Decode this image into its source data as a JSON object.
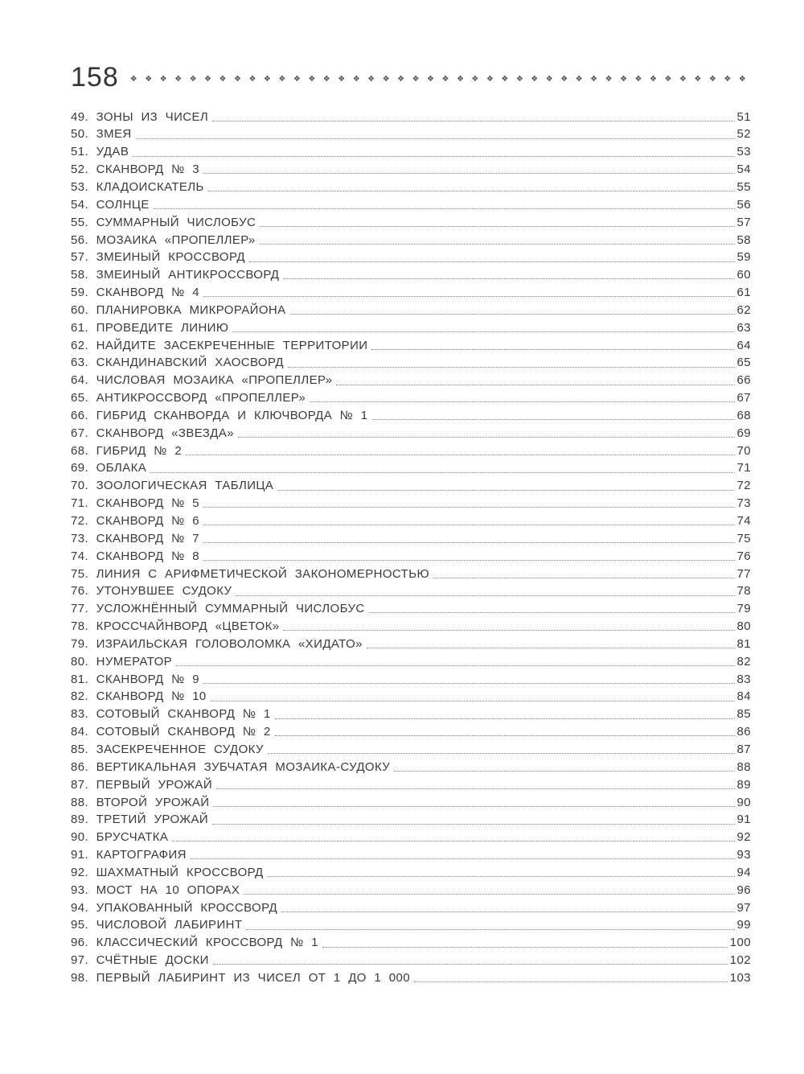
{
  "header": {
    "page_number": "158",
    "ornaments": "❖❖❖❖❖❖❖❖❖❖❖❖❖❖❖❖❖❖❖❖❖❖❖❖❖❖❖❖❖❖❖❖❖❖❖❖❖❖❖❖❖❖❖❖❖❖"
  },
  "toc": {
    "items": [
      {
        "label": "49. ЗОНЫ ИЗ ЧИСЕЛ",
        "page": "51"
      },
      {
        "label": "50. ЗМЕЯ",
        "page": "52"
      },
      {
        "label": "51. УДАВ",
        "page": "53"
      },
      {
        "label": "52. СКАНВОРД № 3",
        "page": "54"
      },
      {
        "label": "53. КЛАДОИСКАТЕЛЬ",
        "page": "55"
      },
      {
        "label": "54. СОЛНЦЕ",
        "page": "56"
      },
      {
        "label": "55. СУММАРНЫЙ ЧИСЛОБУС",
        "page": "57"
      },
      {
        "label": "56. МОЗАИКА «ПРОПЕЛЛЕР»",
        "page": "58"
      },
      {
        "label": "57. ЗМЕИНЫЙ КРОССВОРД",
        "page": "59"
      },
      {
        "label": "58. ЗМЕИНЫЙ АНТИКРОССВОРД",
        "page": "60"
      },
      {
        "label": "59. СКАНВОРД № 4",
        "page": "61"
      },
      {
        "label": "60. ПЛАНИРОВКА МИКРОРАЙОНА",
        "page": "62"
      },
      {
        "label": "61. ПРОВЕДИТЕ ЛИНИЮ",
        "page": "63"
      },
      {
        "label": "62. НАЙДИТЕ ЗАСЕКРЕЧЕННЫЕ ТЕРРИТОРИИ",
        "page": "64"
      },
      {
        "label": "63. СКАНДИНАВСКИЙ ХАОСВОРД",
        "page": "65"
      },
      {
        "label": "64. ЧИСЛОВАЯ МОЗАИКА «ПРОПЕЛЛЕР»",
        "page": "66"
      },
      {
        "label": "65. АНТИКРОССВОРД «ПРОПЕЛЛЕР»",
        "page": "67"
      },
      {
        "label": "66. ГИБРИД СКАНВОРДА И КЛЮЧВОРДА № 1",
        "page": "68"
      },
      {
        "label": "67. СКАНВОРД «ЗВЕЗДА»",
        "page": "69"
      },
      {
        "label": "68. ГИБРИД № 2",
        "page": "70"
      },
      {
        "label": "69. ОБЛАКА",
        "page": "71"
      },
      {
        "label": "70. ЗООЛОГИЧЕСКАЯ ТАБЛИЦА",
        "page": "72"
      },
      {
        "label": "71. СКАНВОРД № 5",
        "page": "73"
      },
      {
        "label": "72. СКАНВОРД № 6",
        "page": "74"
      },
      {
        "label": "73. СКАНВОРД № 7",
        "page": "75"
      },
      {
        "label": "74. СКАНВОРД № 8",
        "page": "76"
      },
      {
        "label": "75. ЛИНИЯ С АРИФМЕТИЧЕСКОЙ ЗАКОНОМЕРНОСТЬЮ",
        "page": "77"
      },
      {
        "label": "76. УТОНУВШЕЕ СУДОКУ",
        "page": "78"
      },
      {
        "label": "77. УСЛОЖНЁННЫЙ СУММАРНЫЙ ЧИСЛОБУС",
        "page": "79"
      },
      {
        "label": "78. КРОССЧАЙНВОРД «ЦВЕТОК»",
        "page": "80"
      },
      {
        "label": "79. ИЗРАИЛЬСКАЯ ГОЛОВОЛОМКА «ХИДАТО»",
        "page": "81"
      },
      {
        "label": "80. НУМЕРАТОР",
        "page": "82"
      },
      {
        "label": "81. СКАНВОРД № 9",
        "page": "83"
      },
      {
        "label": "82. СКАНВОРД № 10",
        "page": "84"
      },
      {
        "label": "83. СОТОВЫЙ СКАНВОРД № 1",
        "page": "85"
      },
      {
        "label": "84. СОТОВЫЙ СКАНВОРД № 2",
        "page": "86"
      },
      {
        "label": "85. ЗАСЕКРЕЧЕННОЕ СУДОКУ",
        "page": "87"
      },
      {
        "label": "86. ВЕРТИКАЛЬНАЯ ЗУБЧАТАЯ МОЗАИКА-СУДОКУ",
        "page": "88"
      },
      {
        "label": "87. ПЕРВЫЙ УРОЖАЙ",
        "page": "89"
      },
      {
        "label": "88. ВТОРОЙ УРОЖАЙ",
        "page": "90"
      },
      {
        "label": "89. ТРЕТИЙ УРОЖАЙ",
        "page": "91"
      },
      {
        "label": "90. БРУСЧАТКА",
        "page": "92"
      },
      {
        "label": "91. КАРТОГРАФИЯ",
        "page": "93"
      },
      {
        "label": "92. ШАХМАТНЫЙ КРОССВОРД",
        "page": "94"
      },
      {
        "label": "93. МОСТ НА 10 ОПОРАХ",
        "page": "96"
      },
      {
        "label": "94. УПАКОВАННЫЙ КРОССВОРД",
        "page": "97"
      },
      {
        "label": "95. ЧИСЛОВОЙ ЛАБИРИНТ",
        "page": "99"
      },
      {
        "label": "96. КЛАССИЧЕСКИЙ КРОССВОРД № 1",
        "page": "100"
      },
      {
        "label": "97. СЧЁТНЫЕ ДОСКИ",
        "page": "102"
      },
      {
        "label": "98. ПЕРВЫЙ ЛАБИРИНТ ИЗ ЧИСЕЛ ОТ 1 ДО 1 000",
        "page": "103"
      }
    ]
  }
}
